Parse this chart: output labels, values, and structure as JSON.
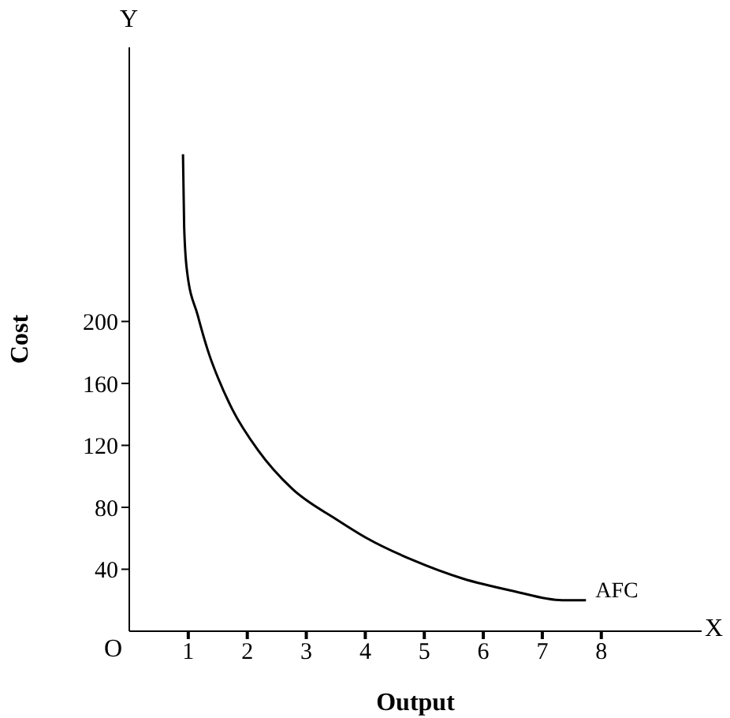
{
  "chart_data": {
    "type": "line",
    "xlabel": "Output",
    "ylabel": "Cost",
    "annotations": [
      "Y",
      "X",
      "O"
    ],
    "x": [
      0.91,
      0.93,
      0.98,
      1.16,
      1.36,
      1.51,
      1.75,
      2.18,
      2.76,
      3.52,
      4.03,
      4.8,
      5.65,
      6.5,
      7.34,
      7.74
    ],
    "series": [
      {
        "name": "AFC",
        "color": "#000000",
        "values": [
          308,
          261,
          232,
          204,
          178,
          163,
          143,
          117,
          92,
          72,
          60,
          46,
          34,
          26,
          20,
          20
        ]
      }
    ],
    "xlim": [
      0,
      9.7
    ],
    "ylim": [
      0,
      377
    ],
    "xticks": [
      1,
      2,
      3,
      4,
      5,
      6,
      7,
      8
    ],
    "yticks": [
      40,
      80,
      120,
      160,
      200
    ],
    "grid": false,
    "legend": false,
    "marker": "none",
    "line_style": "solid"
  }
}
